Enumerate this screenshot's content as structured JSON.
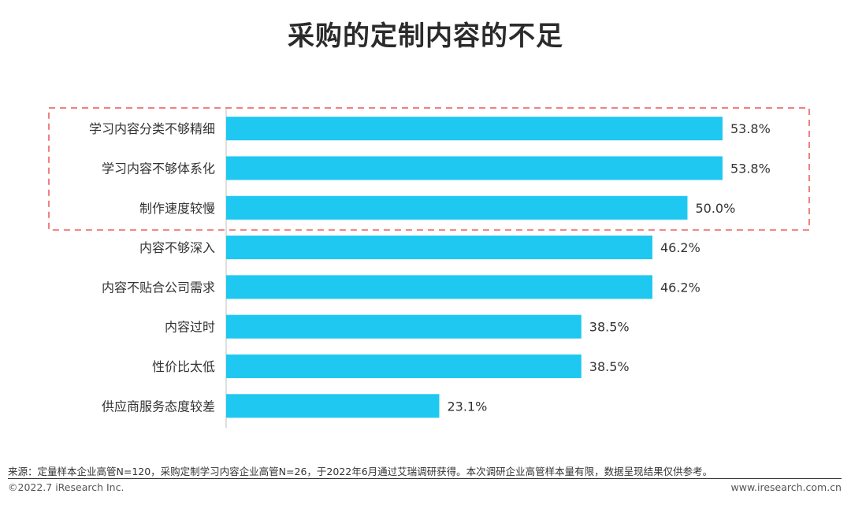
{
  "chart_data": {
    "type": "bar",
    "orientation": "horizontal",
    "title": "采购的定制内容的不足",
    "categories": [
      "学习内容分类不够精细",
      "学习内容不够体系化",
      "制作速度较慢",
      "内容不够深入",
      "内容不贴合公司需求",
      "内容过时",
      "性价比太低",
      "供应商服务态度较差"
    ],
    "values": [
      53.8,
      53.8,
      50.0,
      46.2,
      46.2,
      38.5,
      38.5,
      23.1
    ],
    "value_labels": [
      "53.8%",
      "53.8%",
      "50.0%",
      "46.2%",
      "46.2%",
      "38.5%",
      "38.5%",
      "23.1%"
    ],
    "highlighted_count": 3,
    "xlim": [
      0,
      55
    ],
    "bar_color": "#1ec8f0",
    "highlight_color": "#f08080"
  },
  "footer": {
    "source": "来源：定量样本企业高管N=120，采购定制学习内容企业高管N=26，于2022年6月通过艾瑞调研获得。本次调研企业高管样本量有限，数据呈现结果仅供参考。",
    "copyright": "©2022.7 iResearch Inc.",
    "url": "www.iresearch.com.cn"
  }
}
